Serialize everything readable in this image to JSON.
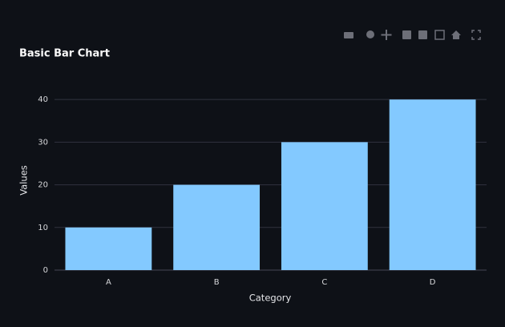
{
  "chart_data": {
    "type": "bar",
    "title": "Basic Bar Chart",
    "x_label": "Category",
    "y_label": "Values",
    "categories": [
      "A",
      "B",
      "C",
      "D"
    ],
    "values": [
      10,
      20,
      30,
      40
    ],
    "color": "#83c9ff",
    "ylim": [
      0,
      42.1
    ],
    "yticks": [
      0,
      10,
      20,
      30,
      40
    ],
    "grid": true
  }
}
